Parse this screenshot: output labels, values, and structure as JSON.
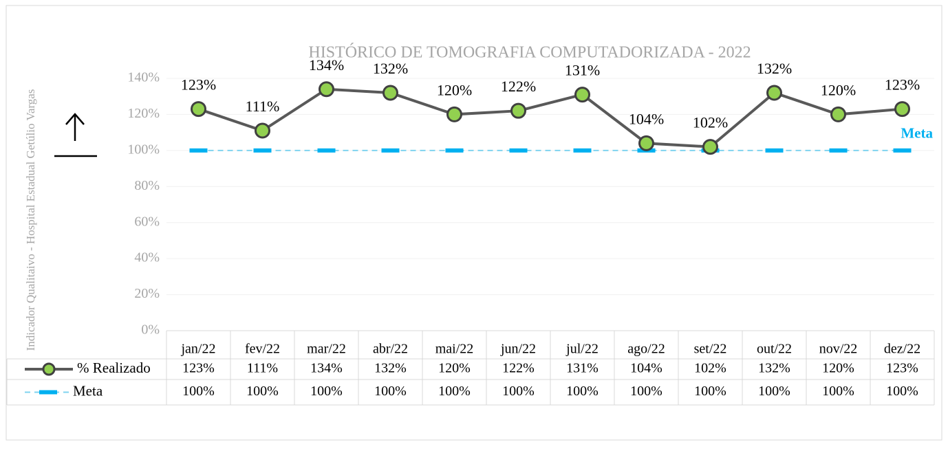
{
  "chart_data": {
    "type": "line",
    "title": "HISTÓRICO DE TOMOGRAFIA COMPUTADORIZADA  - 2022",
    "y_axis_label": "Indicador Qualitaivo - Hospital Estadual Getúlio Vargas",
    "annotation": "Meta",
    "categories": [
      "jan/22",
      "fev/22",
      "mar/22",
      "abr/22",
      "mai/22",
      "jun/22",
      "jul/22",
      "ago/22",
      "set/22",
      "out/22",
      "nov/22",
      "dez/22"
    ],
    "series": [
      {
        "name": "% Realizado",
        "color": "#595959",
        "marker_color": "#92d050",
        "values": [
          123,
          111,
          134,
          132,
          120,
          122,
          131,
          104,
          102,
          132,
          120,
          123
        ],
        "value_labels": [
          "123%",
          "111%",
          "134%",
          "132%",
          "120%",
          "122%",
          "131%",
          "104%",
          "102%",
          "132%",
          "120%",
          "123%"
        ]
      },
      {
        "name": "Meta",
        "color": "#00b0f0",
        "values": [
          100,
          100,
          100,
          100,
          100,
          100,
          100,
          100,
          100,
          100,
          100,
          100
        ],
        "value_labels": [
          "100%",
          "100%",
          "100%",
          "100%",
          "100%",
          "100%",
          "100%",
          "100%",
          "100%",
          "100%",
          "100%",
          "100%"
        ]
      }
    ],
    "ylim": [
      0,
      140
    ],
    "yticks": [
      {
        "value": 0,
        "label": "0%"
      },
      {
        "value": 20,
        "label": "20%"
      },
      {
        "value": 40,
        "label": "40%"
      },
      {
        "value": 60,
        "label": "60%"
      },
      {
        "value": 80,
        "label": "80%"
      },
      {
        "value": 100,
        "label": "100%"
      },
      {
        "value": 120,
        "label": "120%"
      },
      {
        "value": 140,
        "label": "140%"
      }
    ],
    "grid": true
  }
}
